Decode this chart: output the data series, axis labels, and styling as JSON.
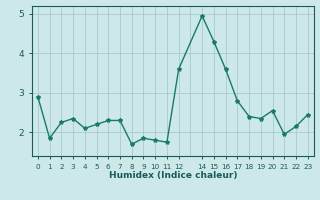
{
  "x": [
    0,
    1,
    2,
    3,
    4,
    5,
    6,
    7,
    8,
    9,
    10,
    11,
    12,
    14,
    15,
    16,
    17,
    18,
    19,
    20,
    21,
    22,
    23
  ],
  "y": [
    2.9,
    1.85,
    2.25,
    2.35,
    2.1,
    2.2,
    2.3,
    2.3,
    1.7,
    1.85,
    1.8,
    1.75,
    3.6,
    4.95,
    4.3,
    3.6,
    2.8,
    2.4,
    2.35,
    2.55,
    1.95,
    2.15,
    2.45
  ],
  "line_color": "#1a7a6a",
  "marker": "*",
  "marker_size": 3,
  "bg_color": "#cce8e8",
  "grid_color": "#aacaca",
  "axis_label_color": "#1a5a5a",
  "tick_color": "#1a5a5a",
  "xlabel": "Humidex (Indice chaleur)",
  "ylim": [
    1.4,
    5.2
  ],
  "yticks": [
    2,
    3,
    4,
    5
  ],
  "xticks": [
    0,
    1,
    2,
    3,
    4,
    5,
    6,
    7,
    8,
    9,
    10,
    11,
    12,
    14,
    15,
    16,
    17,
    18,
    19,
    20,
    21,
    22,
    23
  ],
  "xlim": [
    -0.5,
    23.5
  ]
}
